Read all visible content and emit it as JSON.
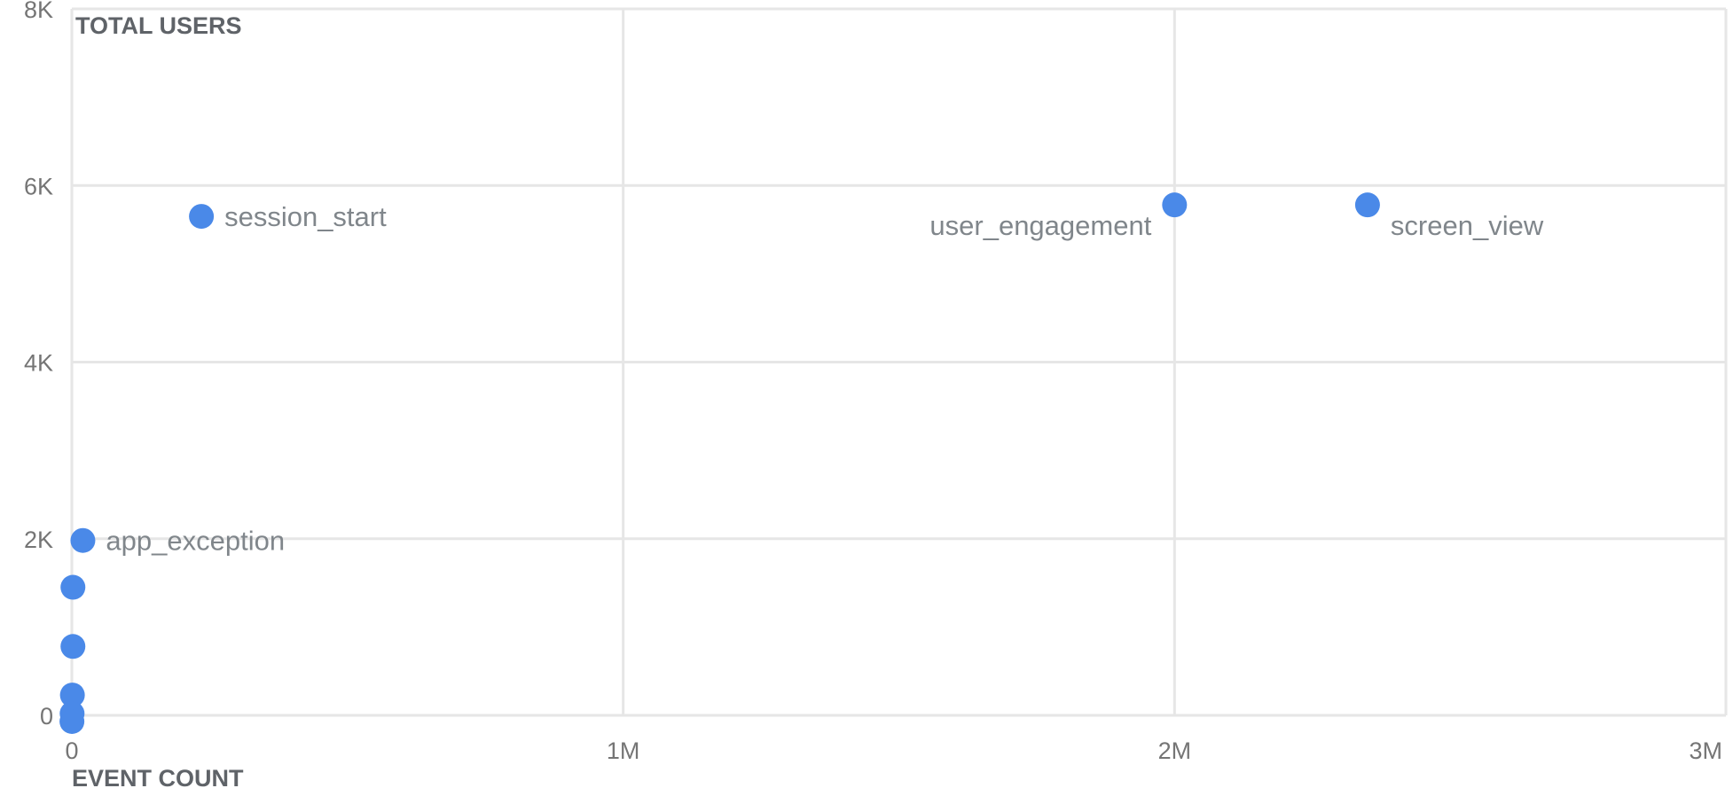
{
  "chart_data": {
    "type": "scatter",
    "title": "",
    "xlabel": "EVENT COUNT",
    "ylabel": "TOTAL USERS",
    "xlim": [
      0,
      3000000
    ],
    "ylim": [
      0,
      8000
    ],
    "grid": true,
    "x_ticks": [
      "0",
      "1M",
      "2M",
      "3M"
    ],
    "y_ticks": [
      "0",
      "2K",
      "4K",
      "6K",
      "8K"
    ],
    "color": "#4a89e8",
    "points": [
      {
        "label": "session_start",
        "x": 235000,
        "y": 5650
      },
      {
        "label": "user_engagement",
        "x": 2000000,
        "y": 5780
      },
      {
        "label": "screen_view",
        "x": 2350000,
        "y": 5780
      },
      {
        "label": "app_exception",
        "x": 20000,
        "y": 1980
      },
      {
        "label": "",
        "x": 2000,
        "y": 1450
      },
      {
        "label": "",
        "x": 2000,
        "y": 780
      },
      {
        "label": "",
        "x": 1000,
        "y": 230
      },
      {
        "label": "",
        "x": 500,
        "y": 20
      },
      {
        "label": "",
        "x": 200,
        "y": -70
      }
    ]
  }
}
